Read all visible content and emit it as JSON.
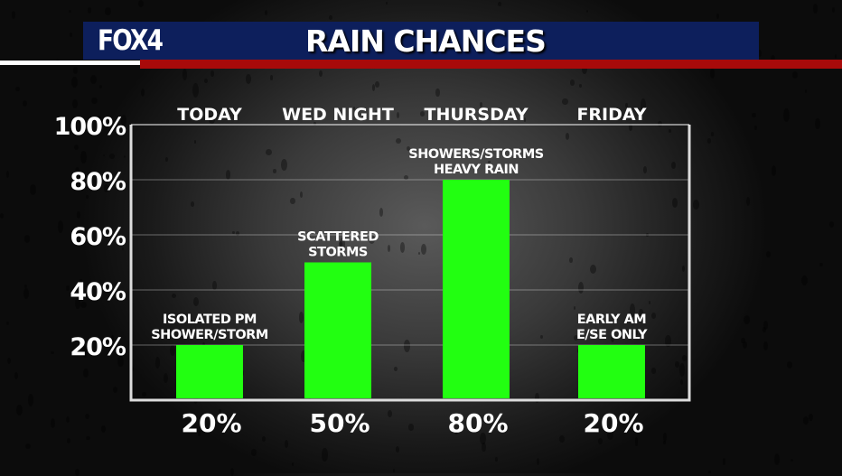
{
  "header": {
    "logo": "FOX4",
    "title": "RAIN CHANCES"
  },
  "colors": {
    "bar": "#22ff11",
    "header_bg": "#0d1f5c",
    "accent_red": "#a80a0a"
  },
  "chart_data": {
    "type": "bar",
    "title": "RAIN CHANCES",
    "categories": [
      "TODAY",
      "WED NIGHT",
      "THURSDAY",
      "FRIDAY"
    ],
    "values": [
      20,
      50,
      80,
      20
    ],
    "value_labels": [
      "20%",
      "50%",
      "80%",
      "20%"
    ],
    "annotations": [
      [
        "ISOLATED PM",
        "SHOWER/STORM"
      ],
      [
        "SCATTERED",
        "STORMS"
      ],
      [
        "SHOWERS/STORMS",
        "HEAVY RAIN"
      ],
      [
        "EARLY AM",
        "E/SE ONLY"
      ]
    ],
    "yticks": [
      20,
      40,
      60,
      80,
      100
    ],
    "ytick_labels": [
      "20%",
      "40%",
      "60%",
      "80%",
      "100%"
    ],
    "ylim": [
      0,
      100
    ],
    "grid": true,
    "xlabel": "",
    "ylabel": ""
  }
}
